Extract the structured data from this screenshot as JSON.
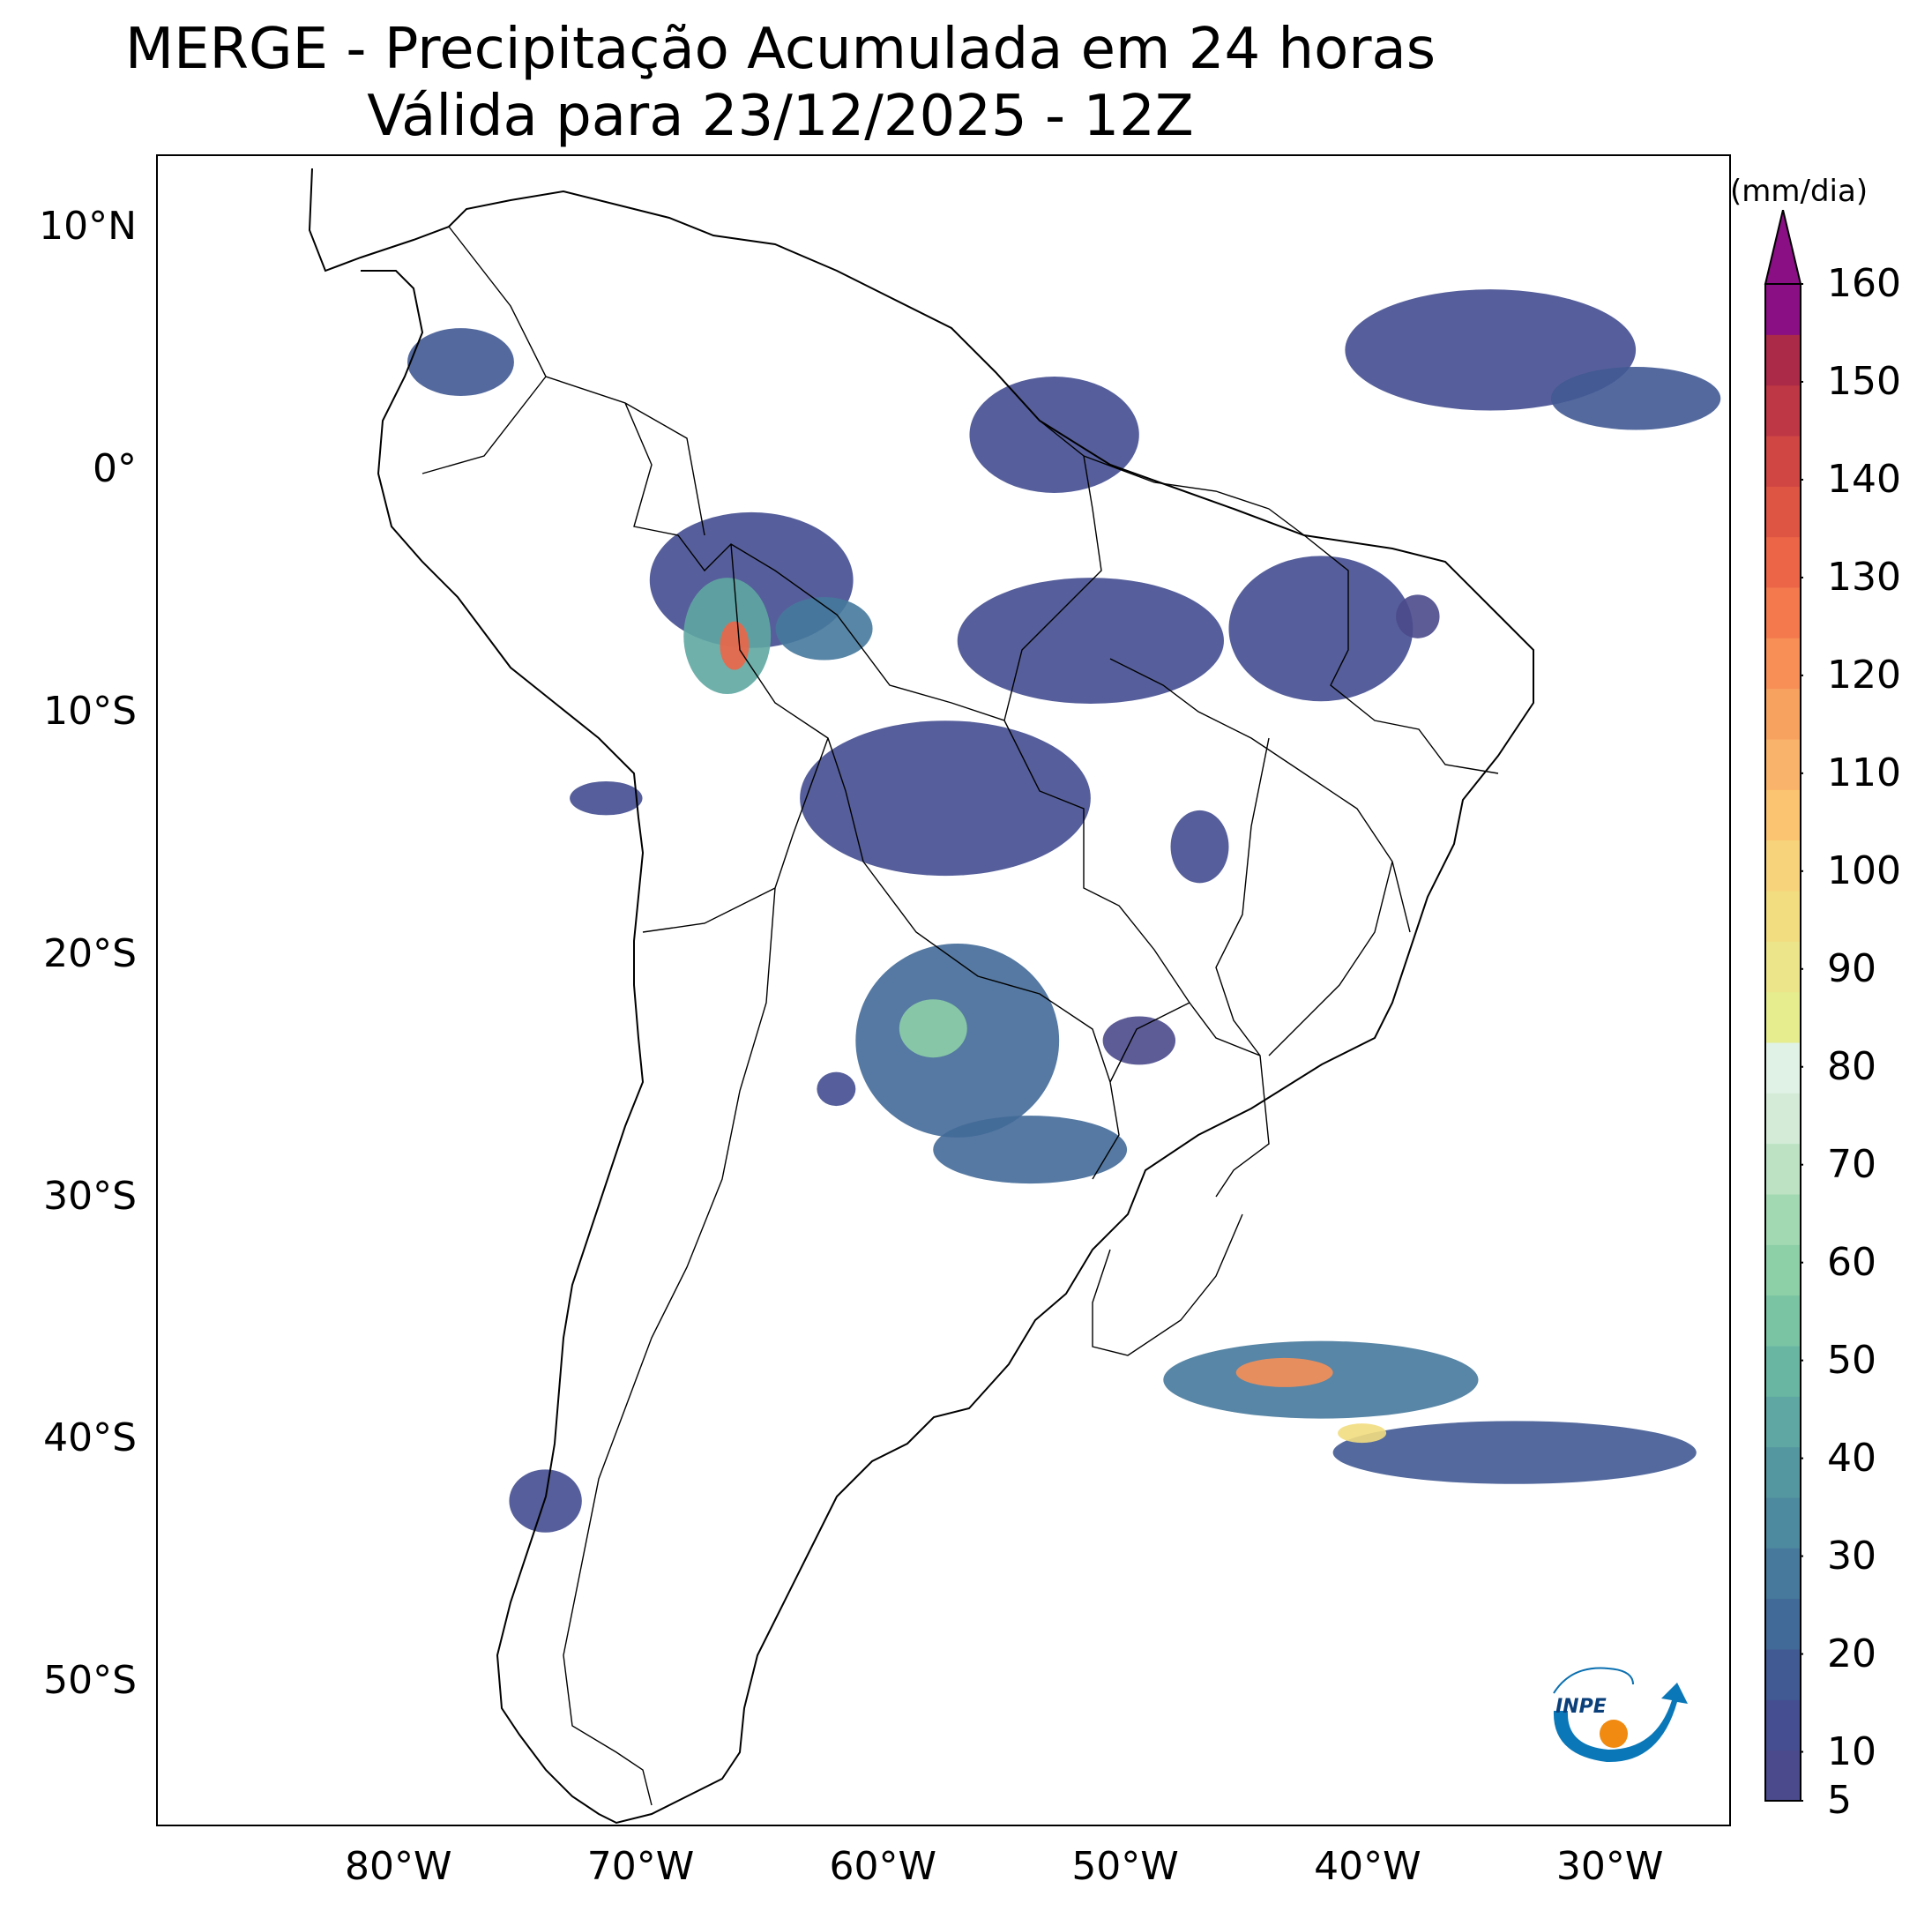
{
  "title": {
    "line1": "MERGE - Precipitação Acumulada em 24 horas",
    "line2": "Válida para 23/12/2025 - 12Z"
  },
  "map": {
    "lon_range": [
      -90,
      -25
    ],
    "lat_range": [
      -56,
      13
    ],
    "lat_labels": [
      {
        "lat": 10,
        "text": "10°N"
      },
      {
        "lat": 0,
        "text": "0°"
      },
      {
        "lat": -10,
        "text": "10°S"
      },
      {
        "lat": -20,
        "text": "20°S"
      },
      {
        "lat": -30,
        "text": "30°S"
      },
      {
        "lat": -40,
        "text": "40°S"
      },
      {
        "lat": -50,
        "text": "50°S"
      }
    ],
    "lon_labels": [
      {
        "lon": -80,
        "text": "80°W"
      },
      {
        "lon": -70,
        "text": "70°W"
      },
      {
        "lon": -60,
        "text": "60°W"
      },
      {
        "lon": -50,
        "text": "50°W"
      },
      {
        "lon": -40,
        "text": "40°W"
      },
      {
        "lon": -30,
        "text": "30°W"
      }
    ],
    "precip_areas": [
      {
        "lon": -65.5,
        "lat": -4.5,
        "rx": 4.2,
        "ry": 2.8,
        "mm": 12
      },
      {
        "lon": -66.5,
        "lat": -6.8,
        "rx": 1.8,
        "ry": 2.4,
        "mm": 45
      },
      {
        "lon": -66.2,
        "lat": -7.2,
        "rx": 0.6,
        "ry": 1.0,
        "mm": 130
      },
      {
        "lon": -62.5,
        "lat": -6.5,
        "rx": 2.0,
        "ry": 1.3,
        "mm": 30
      },
      {
        "lon": -57.5,
        "lat": -13.5,
        "rx": 6.0,
        "ry": 3.2,
        "mm": 14
      },
      {
        "lon": -51.5,
        "lat": -7.0,
        "rx": 5.5,
        "ry": 2.6,
        "mm": 12
      },
      {
        "lon": -42.0,
        "lat": -6.5,
        "rx": 3.8,
        "ry": 3.0,
        "mm": 15
      },
      {
        "lon": -53.0,
        "lat": 1.5,
        "rx": 3.5,
        "ry": 2.4,
        "mm": 14
      },
      {
        "lon": -77.5,
        "lat": 4.5,
        "rx": 2.2,
        "ry": 1.4,
        "mm": 16
      },
      {
        "lon": -57.0,
        "lat": -23.5,
        "rx": 4.2,
        "ry": 4.0,
        "mm": 22
      },
      {
        "lon": -58.0,
        "lat": -23.0,
        "rx": 1.4,
        "ry": 1.2,
        "mm": 60
      },
      {
        "lon": -54.0,
        "lat": -28.0,
        "rx": 4.0,
        "ry": 1.4,
        "mm": 25
      },
      {
        "lon": -38.0,
        "lat": -6.0,
        "rx": 0.9,
        "ry": 0.9,
        "mm": 10
      },
      {
        "lon": -35.0,
        "lat": 5.0,
        "rx": 6.0,
        "ry": 2.5,
        "mm": 14
      },
      {
        "lon": -29.0,
        "lat": 3.0,
        "rx": 3.5,
        "ry": 1.3,
        "mm": 20
      },
      {
        "lon": -42.0,
        "lat": -37.5,
        "rx": 6.5,
        "ry": 1.6,
        "mm": 30
      },
      {
        "lon": -43.5,
        "lat": -37.2,
        "rx": 2.0,
        "ry": 0.6,
        "mm": 120
      },
      {
        "lon": -34.0,
        "lat": -40.5,
        "rx": 7.5,
        "ry": 1.3,
        "mm": 16
      },
      {
        "lon": -40.3,
        "lat": -39.7,
        "rx": 1.0,
        "ry": 0.4,
        "mm": 95
      },
      {
        "lon": -74.0,
        "lat": -42.5,
        "rx": 1.5,
        "ry": 1.3,
        "mm": 15
      },
      {
        "lon": -71.5,
        "lat": -13.5,
        "rx": 1.5,
        "ry": 0.7,
        "mm": 14
      },
      {
        "lon": -62.0,
        "lat": -25.5,
        "rx": 0.8,
        "ry": 0.7,
        "mm": 12
      },
      {
        "lon": -47.0,
        "lat": -15.5,
        "rx": 1.2,
        "ry": 1.5,
        "mm": 14
      },
      {
        "lon": -49.5,
        "lat": -23.5,
        "rx": 1.5,
        "ry": 1.0,
        "mm": 10
      }
    ]
  },
  "colorbar": {
    "units": "(mm/dia)",
    "min": 5,
    "max": 160,
    "extend": "max",
    "tick_labels": [
      "5",
      "10",
      "20",
      "30",
      "40",
      "50",
      "60",
      "70",
      "80",
      "90",
      "100",
      "110",
      "120",
      "130",
      "140",
      "150",
      "160"
    ],
    "colors": [
      "#4b4a8c",
      "#444e90",
      "#415a94",
      "#426a98",
      "#46799c",
      "#4d899f",
      "#5597a1",
      "#5fa7a2",
      "#69b7a3",
      "#7ac4a3",
      "#8dcfa7",
      "#a3d9b2",
      "#bde2c3",
      "#d3ebd7",
      "#e0f1e5",
      "#e5ed8e",
      "#ece58a",
      "#f2dd80",
      "#f7d47c",
      "#fbc471",
      "#fab36a",
      "#f8a260",
      "#f78f56",
      "#f47a4d",
      "#ec6547",
      "#df5544",
      "#d04643",
      "#be3744",
      "#aa2a48",
      "#8a0f84"
    ],
    "extend_color": "#8a0f84"
  },
  "logo": {
    "text": "INPE"
  }
}
